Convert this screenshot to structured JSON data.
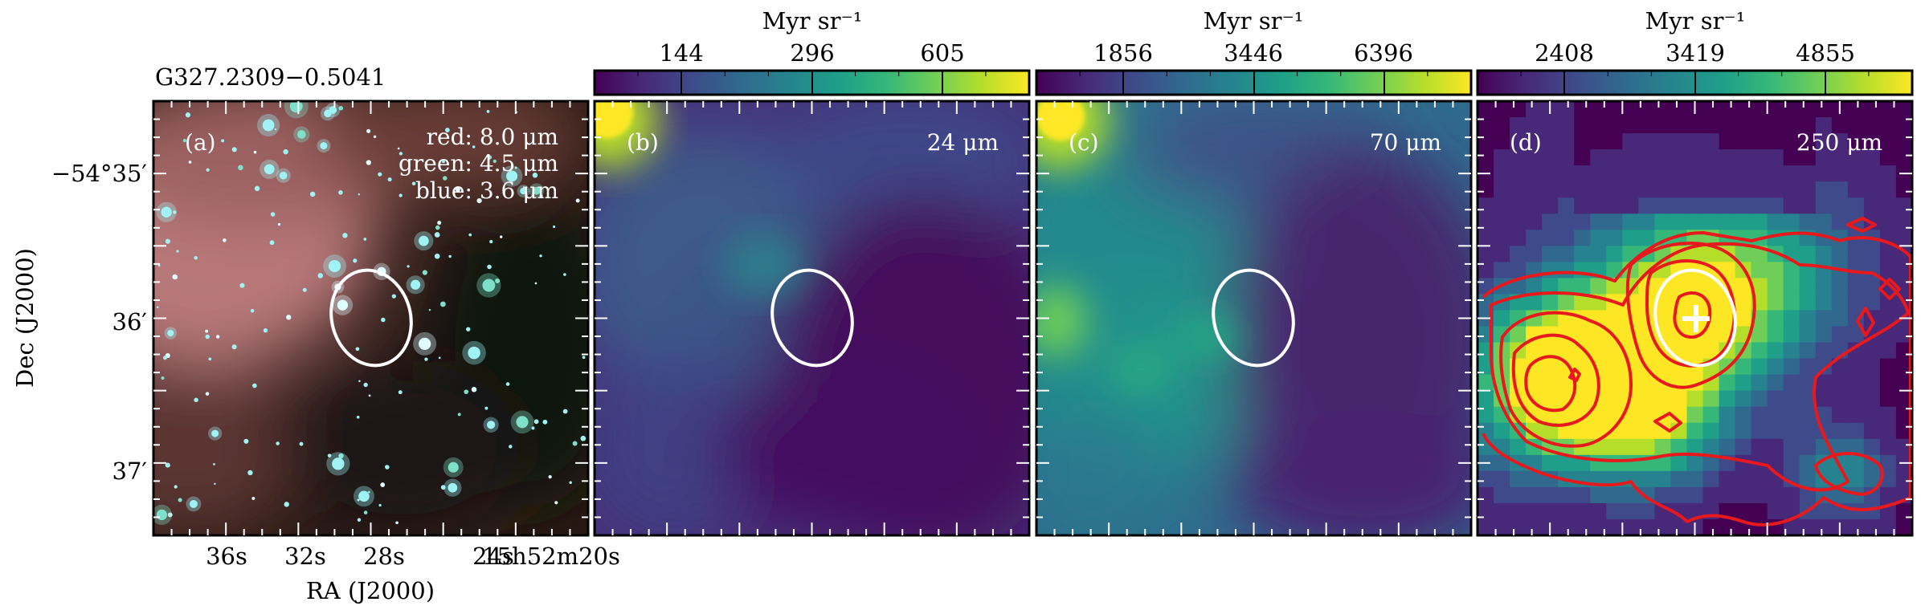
{
  "object_name": "G327.2309−0.5041",
  "axes": {
    "ylabel": "Dec (J2000)",
    "xlabel": "RA (J2000)",
    "dec_ticks": [
      "−54°35′",
      "36′",
      "37′"
    ],
    "ra_ticks": [
      "36s",
      "32s",
      "28s",
      "24s",
      "15h52m20s"
    ]
  },
  "panels": [
    {
      "id": "a",
      "tag": "(a)",
      "wavelength": "",
      "legend_lines": [
        "red: 8.0 μm",
        "green: 4.5 μm",
        "blue: 3.6 μm"
      ],
      "colorbar": null
    },
    {
      "id": "b",
      "tag": "(b)",
      "wavelength": "24 μm",
      "colorbar": {
        "unit": "Myr sr⁻¹",
        "ticks": [
          "144",
          "296",
          "605"
        ]
      }
    },
    {
      "id": "c",
      "tag": "(c)",
      "wavelength": "70 μm",
      "colorbar": {
        "unit": "Myr sr⁻¹",
        "ticks": [
          "1856",
          "3446",
          "6396"
        ]
      }
    },
    {
      "id": "d",
      "tag": "(d)",
      "wavelength": "250 μm",
      "colorbar": {
        "unit": "Myr sr⁻¹",
        "ticks": [
          "2408",
          "3419",
          "4855"
        ]
      }
    }
  ],
  "colors": {
    "ellipse": "#ffffff",
    "contour": "#e8191c",
    "marker": "#ffffff",
    "viridis": [
      "#440154",
      "#482878",
      "#3e4a89",
      "#31688e",
      "#26828e",
      "#1f9e89",
      "#35b779",
      "#6ece58",
      "#b5de2b",
      "#fde725"
    ]
  }
}
